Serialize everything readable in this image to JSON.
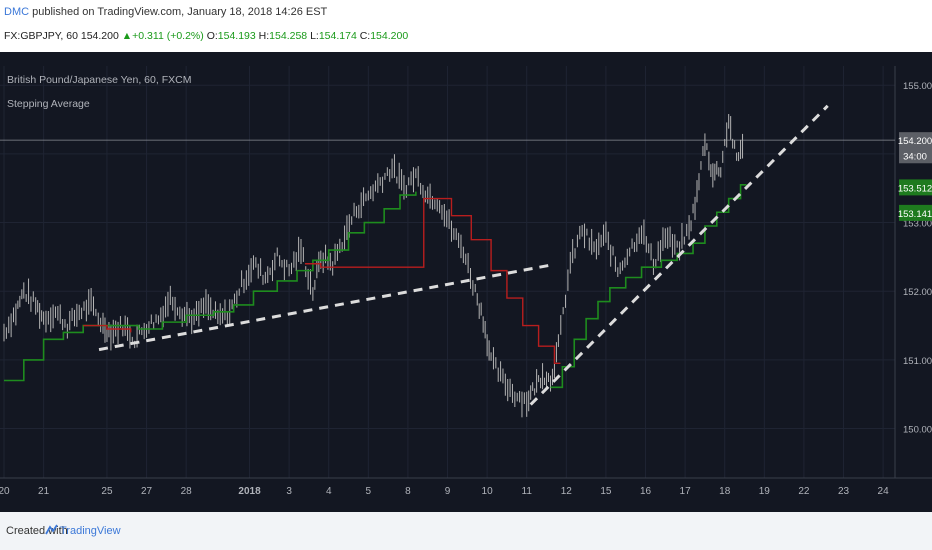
{
  "header": {
    "author": "DMC",
    "published_text": " published on TradingView.com, January 18, 2018 14:26 EST",
    "symbol": "FX:GBPJPY, 60",
    "last": "154.200",
    "change": "+0.311 (+0.2%)",
    "o_label": "O:",
    "o_value": "154.193",
    "h_label": "H:",
    "h_value": "154.258",
    "l_label": "L:",
    "l_value": "154.174",
    "c_label": "C:",
    "c_value": "154.200"
  },
  "chart_data": {
    "type": "line",
    "title": "British Pound/Japanese Yen, 60, FXCM",
    "indicator": "Stepping Average",
    "ylim": [
      149.28,
      155.28
    ],
    "y_ticks": [
      150,
      151,
      152,
      153,
      154,
      155
    ],
    "y_tick_labels": [
      "150.000",
      "151.000",
      "152.000",
      "153.000",
      "154.000",
      "155.000"
    ],
    "x_ticks": [
      {
        "label": "20",
        "pos": 0.0
      },
      {
        "label": "21",
        "pos": 1.0
      },
      {
        "label": "25",
        "pos": 2.6
      },
      {
        "label": "27",
        "pos": 3.6
      },
      {
        "label": "28",
        "pos": 4.6
      },
      {
        "label": "2018",
        "pos": 6.2
      },
      {
        "label": "3",
        "pos": 7.2
      },
      {
        "label": "4",
        "pos": 8.2
      },
      {
        "label": "5",
        "pos": 9.2
      },
      {
        "label": "8",
        "pos": 10.2
      },
      {
        "label": "9",
        "pos": 11.2
      },
      {
        "label": "10",
        "pos": 12.2
      },
      {
        "label": "11",
        "pos": 13.2
      },
      {
        "label": "12",
        "pos": 14.2
      },
      {
        "label": "15",
        "pos": 15.2
      },
      {
        "label": "16",
        "pos": 16.2
      },
      {
        "label": "17",
        "pos": 17.2
      },
      {
        "label": "18",
        "pos": 18.2
      },
      {
        "label": "19",
        "pos": 19.2
      },
      {
        "label": "22",
        "pos": 20.2
      },
      {
        "label": "23",
        "pos": 21.2
      },
      {
        "label": "24",
        "pos": 22.2
      }
    ],
    "xlim": [
      0,
      22.5
    ],
    "price": [
      [
        0.0,
        151.4
      ],
      [
        0.3,
        151.7
      ],
      [
        0.5,
        152.0
      ],
      [
        0.8,
        151.8
      ],
      [
        1.0,
        151.6
      ],
      [
        1.3,
        151.7
      ],
      [
        1.6,
        151.5
      ],
      [
        1.9,
        151.7
      ],
      [
        2.2,
        151.8
      ],
      [
        2.5,
        151.5
      ],
      [
        2.7,
        151.4
      ],
      [
        3.0,
        151.5
      ],
      [
        3.3,
        151.3
      ],
      [
        3.6,
        151.5
      ],
      [
        3.9,
        151.6
      ],
      [
        4.2,
        151.9
      ],
      [
        4.5,
        151.7
      ],
      [
        4.8,
        151.6
      ],
      [
        5.1,
        151.8
      ],
      [
        5.4,
        151.6
      ],
      [
        5.7,
        151.7
      ],
      [
        6.0,
        152.1
      ],
      [
        6.3,
        152.4
      ],
      [
        6.6,
        152.2
      ],
      [
        6.9,
        152.5
      ],
      [
        7.2,
        152.3
      ],
      [
        7.5,
        152.6
      ],
      [
        7.8,
        152.0
      ],
      [
        8.0,
        152.5
      ],
      [
        8.3,
        152.4
      ],
      [
        8.6,
        152.8
      ],
      [
        8.9,
        153.2
      ],
      [
        9.2,
        153.4
      ],
      [
        9.5,
        153.6
      ],
      [
        9.8,
        153.8
      ],
      [
        10.1,
        153.5
      ],
      [
        10.4,
        153.7
      ],
      [
        10.7,
        153.4
      ],
      [
        11.0,
        153.3
      ],
      [
        11.3,
        152.9
      ],
      [
        11.6,
        152.6
      ],
      [
        11.9,
        152.0
      ],
      [
        12.1,
        151.6
      ],
      [
        12.3,
        151.0
      ],
      [
        12.6,
        150.7
      ],
      [
        12.9,
        150.5
      ],
      [
        13.2,
        150.4
      ],
      [
        13.4,
        150.6
      ],
      [
        13.6,
        150.8
      ],
      [
        13.8,
        150.7
      ],
      [
        14.0,
        151.2
      ],
      [
        14.3,
        152.4
      ],
      [
        14.6,
        152.9
      ],
      [
        14.9,
        152.6
      ],
      [
        15.2,
        152.8
      ],
      [
        15.5,
        152.3
      ],
      [
        15.8,
        152.6
      ],
      [
        16.1,
        152.9
      ],
      [
        16.4,
        152.4
      ],
      [
        16.7,
        152.8
      ],
      [
        17.0,
        152.6
      ],
      [
        17.3,
        152.9
      ],
      [
        17.5,
        153.4
      ],
      [
        17.7,
        154.2
      ],
      [
        17.9,
        153.7
      ],
      [
        18.1,
        153.8
      ],
      [
        18.3,
        154.5
      ],
      [
        18.5,
        153.9
      ],
      [
        18.7,
        154.2
      ]
    ],
    "green_steps": [
      [
        0.0,
        150.7
      ],
      [
        0.5,
        151.0
      ],
      [
        1.0,
        151.3
      ],
      [
        1.5,
        151.4
      ],
      [
        2.0,
        151.5
      ],
      [
        3.4,
        151.45
      ],
      [
        4.0,
        151.55
      ],
      [
        4.6,
        151.65
      ],
      [
        5.3,
        151.7
      ],
      [
        5.8,
        151.8
      ],
      [
        6.3,
        152.0
      ],
      [
        6.9,
        152.15
      ],
      [
        7.4,
        152.3
      ],
      [
        7.8,
        152.45
      ],
      [
        8.2,
        152.6
      ],
      [
        8.7,
        152.85
      ],
      [
        9.1,
        153.0
      ],
      [
        9.6,
        153.2
      ],
      [
        10.0,
        153.4
      ],
      [
        10.4,
        153.45
      ],
      [
        13.8,
        150.6
      ],
      [
        14.1,
        150.9
      ],
      [
        14.4,
        151.3
      ],
      [
        14.7,
        151.6
      ],
      [
        15.0,
        151.85
      ],
      [
        15.3,
        152.05
      ],
      [
        15.7,
        152.2
      ],
      [
        16.1,
        152.35
      ],
      [
        16.6,
        152.45
      ],
      [
        17.0,
        152.55
      ],
      [
        17.4,
        152.7
      ],
      [
        17.7,
        152.95
      ],
      [
        18.0,
        153.15
      ],
      [
        18.3,
        153.35
      ],
      [
        18.6,
        153.55
      ]
    ],
    "red_steps": [
      [
        2.0,
        151.5
      ],
      [
        2.6,
        151.45
      ],
      [
        3.2,
        151.4
      ],
      [
        7.6,
        152.4
      ],
      [
        8.0,
        152.35
      ],
      [
        10.6,
        153.35
      ],
      [
        11.3,
        153.1
      ],
      [
        11.8,
        152.75
      ],
      [
        12.3,
        152.3
      ],
      [
        12.7,
        151.9
      ],
      [
        13.1,
        151.5
      ],
      [
        13.5,
        151.2
      ],
      [
        13.9,
        150.95
      ]
    ],
    "trendlines": [
      {
        "name": "dash-1",
        "from": [
          2.4,
          151.15
        ],
        "to": [
          13.8,
          152.38
        ]
      },
      {
        "name": "dash-2",
        "from": [
          13.3,
          150.35
        ],
        "to": [
          20.8,
          154.7
        ]
      }
    ],
    "price_labels": [
      {
        "text": "154.200",
        "value": 154.2,
        "color": "#5c5f66"
      },
      {
        "text": "34:00",
        "value": 153.98,
        "color": "#5c5f66"
      },
      {
        "text": "153.512",
        "value": 153.512,
        "color": "#1e7a1e"
      },
      {
        "text": "153.141",
        "value": 153.141,
        "color": "#1e7a1e"
      }
    ],
    "colors": {
      "background": "#131722",
      "grid": "#1f2433",
      "price": "#b4b4b4",
      "green": "#1e8c1e",
      "red": "#b81e1e",
      "trend": "#dcdcdc",
      "axis_text": "#b0b3ba"
    }
  },
  "footer": {
    "created_with": "Created with",
    "brand": "TradingView"
  }
}
